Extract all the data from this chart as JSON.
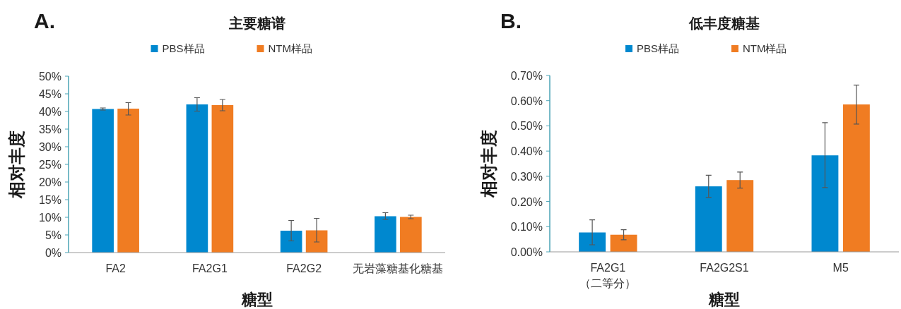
{
  "chart_data": [
    {
      "type": "bar",
      "title": "主要糖谱",
      "annotations": [
        "A."
      ],
      "xlabel": "糖型",
      "ylabel": "相对丰度",
      "categories": [
        "FA2",
        "FA2G1",
        "FA2G2",
        "无岩藻糖基化糖基"
      ],
      "series": [
        {
          "name": "PBS样品",
          "color": "#0088cf",
          "values": [
            40.7,
            42.0,
            6.2,
            10.3
          ],
          "errors": [
            [
              40.4,
              41.0
            ],
            [
              40.1,
              43.9
            ],
            [
              3.3,
              9.1
            ],
            [
              9.4,
              11.3
            ]
          ]
        },
        {
          "name": "NTM样品",
          "color": "#f07c22",
          "values": [
            40.8,
            41.8,
            6.3,
            10.1
          ],
          "errors": [
            [
              39.0,
              42.5
            ],
            [
              40.2,
              43.4
            ],
            [
              3.0,
              9.7
            ],
            [
              9.6,
              10.6
            ]
          ]
        }
      ],
      "ylim": [
        0,
        50
      ],
      "yticks": [
        {
          "value": 0,
          "label": "0%"
        },
        {
          "value": 5,
          "label": "5%"
        },
        {
          "value": 10,
          "label": "10%"
        },
        {
          "value": 15,
          "label": "15%"
        },
        {
          "value": 20,
          "label": "20%"
        },
        {
          "value": 25,
          "label": "25%"
        },
        {
          "value": 30,
          "label": "30%"
        },
        {
          "value": 35,
          "label": "35%"
        },
        {
          "value": 40,
          "label": "40%"
        },
        {
          "value": 45,
          "label": "45%"
        },
        {
          "value": 50,
          "label": "50%"
        }
      ],
      "legend": "top",
      "grid": false
    },
    {
      "type": "bar",
      "title": "低丰度糖基",
      "annotations": [
        "B."
      ],
      "xlabel": "糖型",
      "ylabel": "相对丰度",
      "categories": [
        "FA2G1\n（二等分）",
        "FA2G2S1",
        "M5"
      ],
      "series": [
        {
          "name": "PBS样品",
          "color": "#0088cf",
          "values": [
            0.077,
            0.26,
            0.383
          ],
          "errors": [
            [
              0.028,
              0.127
            ],
            [
              0.216,
              0.304
            ],
            [
              0.255,
              0.513
            ]
          ]
        },
        {
          "name": "NTM样品",
          "color": "#f07c22",
          "values": [
            0.068,
            0.285,
            0.585
          ],
          "errors": [
            [
              0.048,
              0.088
            ],
            [
              0.253,
              0.317
            ],
            [
              0.507,
              0.662
            ]
          ]
        }
      ],
      "ylim": [
        0,
        0.7
      ],
      "yticks": [
        {
          "value": 0,
          "label": "0.00%"
        },
        {
          "value": 0.1,
          "label": "0.10%"
        },
        {
          "value": 0.2,
          "label": "0.20%"
        },
        {
          "value": 0.3,
          "label": "0.30%"
        },
        {
          "value": 0.4,
          "label": "0.40%"
        },
        {
          "value": 0.5,
          "label": "0.50%"
        },
        {
          "value": 0.6,
          "label": "0.60%"
        },
        {
          "value": 0.7,
          "label": "0.70%"
        }
      ],
      "legend": "top",
      "grid": false
    }
  ]
}
